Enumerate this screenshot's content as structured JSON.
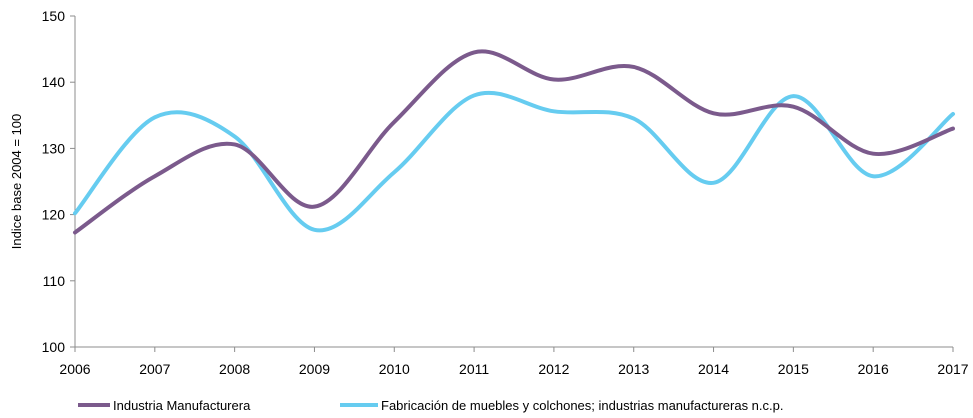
{
  "chart_data": {
    "type": "line",
    "ylabel": "Indice base 2004 = 100",
    "xlabel": "",
    "title": "",
    "categories": [
      "2006",
      "2007",
      "2008",
      "2009",
      "2010",
      "2011",
      "2012",
      "2013",
      "2014",
      "2015",
      "2016",
      "2017"
    ],
    "ylim": [
      100,
      150
    ],
    "yticks": [
      100,
      110,
      120,
      130,
      140,
      150
    ],
    "grid": false,
    "legend": "bottom",
    "series": [
      {
        "name": "Industria Manufacturera",
        "color": "#7b5a8c",
        "values": [
          117.3,
          125.8,
          130.6,
          121.2,
          134.0,
          144.5,
          140.4,
          142.3,
          135.3,
          136.3,
          129.2,
          133.0
        ]
      },
      {
        "name": "Fabricación de muebles y colchones; industrias manufactureras n.c.p.",
        "color": "#66ccf0",
        "values": [
          120.2,
          134.7,
          131.8,
          117.7,
          126.4,
          138.0,
          135.6,
          134.5,
          124.8,
          137.9,
          125.8,
          135.2
        ]
      }
    ]
  }
}
